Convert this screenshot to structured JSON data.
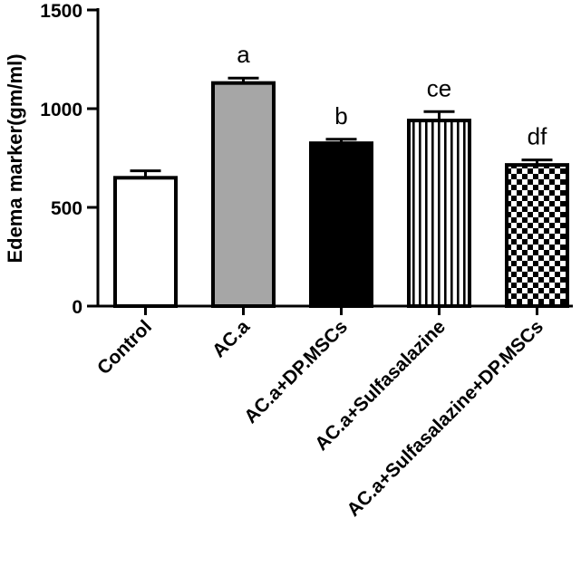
{
  "chart_data": {
    "type": "bar",
    "title": "",
    "xlabel": "",
    "ylabel": "Edema marker(gm/ml)",
    "ylim": [
      0,
      1500
    ],
    "yticks": [
      0,
      500,
      1000,
      1500
    ],
    "grid": false,
    "categories": [
      "Control",
      "AC.a",
      "AC.a+DP.MSCs",
      "AC.a+Sulfasalazine",
      "AC.a+Sulfasalazine+DP.MSCs"
    ],
    "values": [
      650,
      1130,
      825,
      940,
      715
    ],
    "errors": [
      35,
      25,
      20,
      45,
      25
    ],
    "annotations": [
      "",
      "a",
      "b",
      "ce",
      "df"
    ],
    "fills": [
      "white",
      "gray",
      "black",
      "vertical-stripes",
      "checkerboard"
    ],
    "colors": {
      "gray": "#a6a6a6",
      "black": "#000000",
      "white": "#ffffff"
    }
  }
}
